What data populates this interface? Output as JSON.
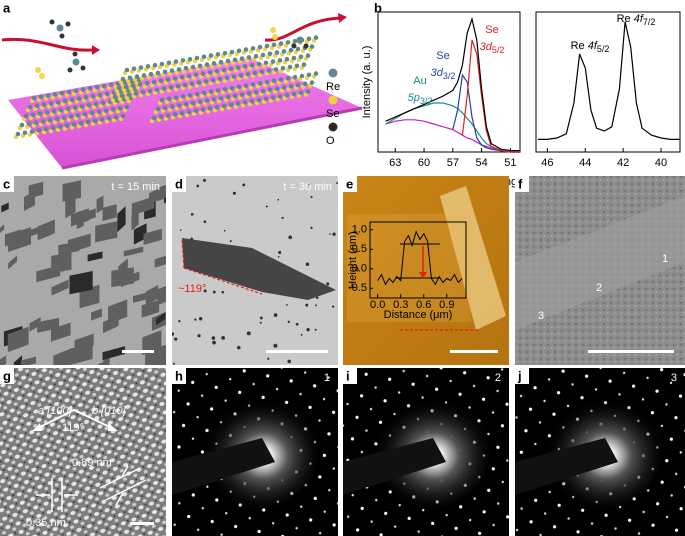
{
  "panels": {
    "a": {
      "label": "a",
      "legend": [
        "Re",
        "Se",
        "O"
      ]
    },
    "b": {
      "label": "b"
    },
    "c": {
      "label": "c",
      "time": "t = 15 min"
    },
    "d": {
      "label": "d",
      "time": "t = 30 min",
      "angle": "~119°"
    },
    "e": {
      "label": "e"
    },
    "f": {
      "label": "f",
      "regions": [
        "1",
        "2",
        "3"
      ]
    },
    "g": {
      "label": "g",
      "directions": [
        "a [100]",
        "b [010]"
      ],
      "angle": "119°",
      "spacings": [
        "0.89 nm",
        "0.35 nm"
      ]
    },
    "h": {
      "label": "h",
      "region": "1"
    },
    "i": {
      "label": "i",
      "region": "2"
    },
    "j": {
      "label": "j",
      "region": "3"
    }
  },
  "chart_data": [
    {
      "type": "line",
      "ylabel": "Intensity (a. u.)",
      "xlabel": "Binding energy (eV)",
      "x": [
        64,
        63,
        62,
        61,
        60,
        59,
        58,
        57,
        56.5,
        56,
        55.5,
        55,
        54.5,
        54,
        53.5,
        53,
        52,
        51,
        50
      ],
      "xlim": [
        64.8,
        50
      ],
      "xticks": [
        63,
        60,
        57,
        54,
        51
      ],
      "ylim": [
        0,
        100
      ],
      "series": [
        {
          "color": "#c21fc2",
          "values": [
            20,
            22,
            23,
            23,
            22,
            20,
            18,
            16,
            14,
            12,
            10,
            9,
            7,
            5,
            4,
            3,
            1,
            0,
            0
          ]
        },
        {
          "color": "#1a8c8c",
          "values": [
            20,
            24,
            28,
            31,
            33,
            35,
            35,
            33,
            31,
            28,
            24,
            20,
            15,
            10,
            6,
            4,
            1,
            0,
            0
          ]
        },
        {
          "color": "#2441a8",
          "values": [
            null,
            null,
            null,
            null,
            null,
            null,
            null,
            16,
            30,
            55,
            50,
            25,
            10,
            5,
            3,
            2,
            1,
            0,
            0
          ]
        },
        {
          "color": "#e0201b",
          "values": [
            null,
            null,
            null,
            null,
            null,
            null,
            null,
            null,
            null,
            12,
            40,
            80,
            70,
            40,
            15,
            4,
            1,
            0,
            0
          ]
        },
        {
          "color": "#000000",
          "values": [
            22,
            25,
            28,
            31,
            34,
            37,
            40,
            44,
            50,
            62,
            85,
            95,
            80,
            45,
            18,
            6,
            2,
            1,
            1
          ]
        }
      ],
      "annotations": [
        {
          "element": "Se",
          "orbital": "3d",
          "subscript": "5/2",
          "color": "#e0201b"
        },
        {
          "element": "Se",
          "orbital": "3d",
          "subscript": "3/2",
          "color": "#2441a8"
        },
        {
          "element": "Au",
          "orbital": "5p",
          "subscript": "3/2",
          "color": "#1a8c8c"
        }
      ]
    },
    {
      "type": "line",
      "x": [
        46.5,
        46,
        45.5,
        45,
        44.6,
        44.3,
        44,
        43.7,
        43.4,
        43,
        42.6,
        42.2,
        41.9,
        41.6,
        41.3,
        41,
        40.5,
        40,
        39.5,
        39
      ],
      "xlim": [
        46.6,
        39
      ],
      "xticks": [
        46,
        44,
        42,
        40
      ],
      "ylim": [
        0,
        100
      ],
      "series": [
        {
          "color": "#000000",
          "values": [
            9,
            9,
            10,
            13,
            35,
            70,
            60,
            30,
            17,
            15,
            18,
            45,
            93,
            75,
            35,
            17,
            12,
            10,
            9,
            9
          ]
        }
      ],
      "annotations": [
        {
          "element": "Re",
          "orbital": "4f",
          "subscript": "5/2",
          "color": "#000000"
        },
        {
          "element": "Re",
          "orbital": "4f",
          "subscript": "7/2",
          "color": "#000000"
        }
      ]
    },
    {
      "type": "line",
      "ylabel": "Height (nm)",
      "xlabel": "Distance (μm)",
      "x": [
        0.0,
        0.05,
        0.1,
        0.15,
        0.2,
        0.25,
        0.3,
        0.35,
        0.4,
        0.45,
        0.5,
        0.55,
        0.6,
        0.65,
        0.7,
        0.75,
        0.8,
        0.85,
        0.9,
        0.95,
        1.0,
        1.05,
        1.1
      ],
      "xlim": [
        -0.1,
        1.15
      ],
      "xticks": [
        {
          "value": 0,
          "label": "0.0"
        },
        0.3,
        0.6,
        0.9
      ],
      "ylim": [
        -0.75,
        1.2
      ],
      "yticks": [
        {
          "value": 1,
          "label": "1.0"
        },
        0.5,
        {
          "value": 0,
          "label": "0.0"
        },
        -0.5
      ],
      "series": [
        {
          "color": "#000000",
          "values": [
            -0.3,
            -0.15,
            -0.4,
            -0.25,
            -0.35,
            -0.2,
            -0.3,
            0.7,
            0.85,
            0.6,
            0.95,
            0.75,
            0.9,
            0.7,
            -0.25,
            -0.4,
            -0.2,
            -0.35,
            -0.25,
            -0.3,
            -0.15,
            -0.35,
            -0.25
          ]
        }
      ]
    }
  ]
}
